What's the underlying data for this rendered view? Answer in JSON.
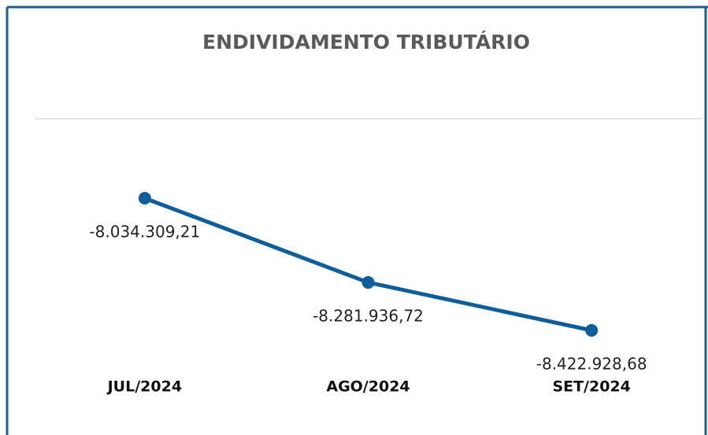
{
  "chart_data": {
    "type": "line",
    "title": "ENDIVIDAMENTO TRIBUTÁRIO",
    "categories": [
      "JUL/2024",
      "AGO/2024",
      "SET/2024"
    ],
    "values": [
      -8034309.21,
      -8281936.72,
      -8422928.68
    ],
    "value_labels": [
      "-8.034.309,21",
      "-8.281.936,72",
      "-8.422.928,68"
    ],
    "color": "#0f5e9c"
  }
}
